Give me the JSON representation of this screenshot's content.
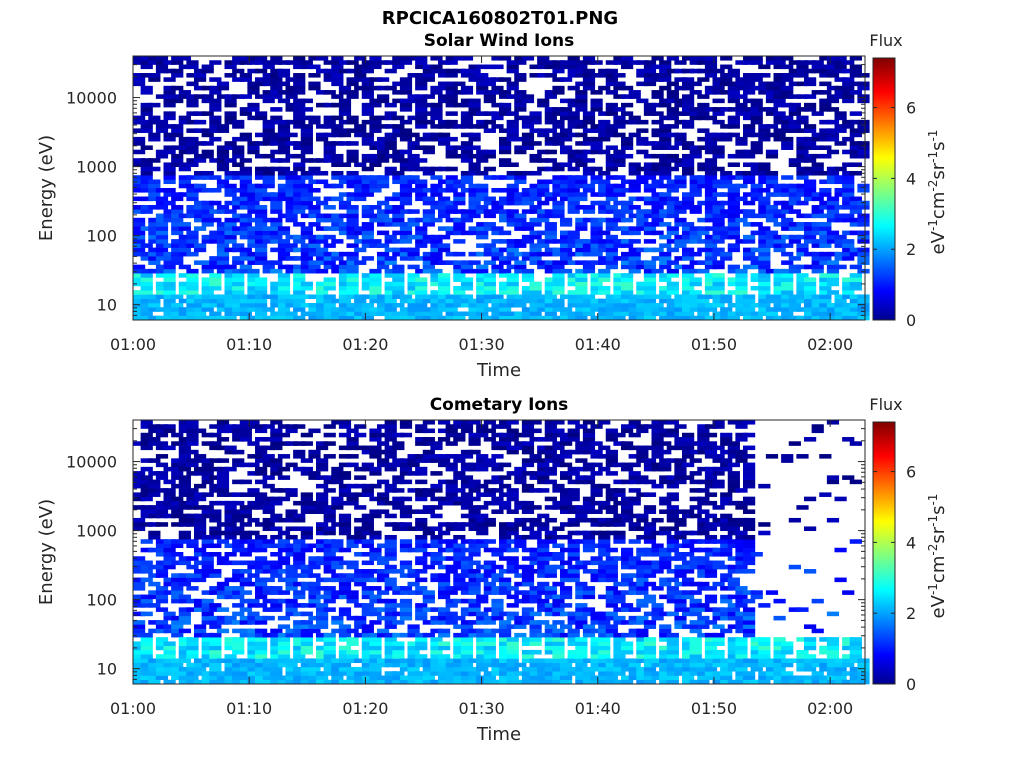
{
  "figure_title": "RPCICA160802T01.PNG",
  "chart_data": [
    {
      "type": "heatmap",
      "title": "Solar Wind Ions",
      "xlabel": "Time",
      "ylabel": "Energy (eV)",
      "x_ticks": [
        "01:00",
        "01:10",
        "01:20",
        "01:30",
        "01:40",
        "01:50",
        "02:00"
      ],
      "x_range": [
        "01:00",
        "02:03"
      ],
      "y_scale": "log",
      "y_ticks": [
        10,
        100,
        1000,
        10000
      ],
      "y_range": [
        6,
        40000
      ],
      "colorbar": {
        "title": "Flux",
        "label": "eV-1cm-2sr-1s-1",
        "range": [
          0,
          7.4
        ],
        "ticks": [
          0,
          2,
          4,
          6
        ],
        "colormap": "jet"
      },
      "data_gap_after": null,
      "pattern": {
        "low_energy_bands_flux": [
          2,
          3.2
        ],
        "mid_energy_flux": [
          1,
          2
        ],
        "high_energy_flux": [
          0,
          0.6
        ]
      }
    },
    {
      "type": "heatmap",
      "title": "Cometary Ions",
      "xlabel": "Time",
      "ylabel": "Energy (eV)",
      "x_ticks": [
        "01:00",
        "01:10",
        "01:20",
        "01:30",
        "01:40",
        "01:50",
        "02:00"
      ],
      "x_range": [
        "01:00",
        "02:03"
      ],
      "y_scale": "log",
      "y_ticks": [
        10,
        100,
        1000,
        10000
      ],
      "y_range": [
        6,
        40000
      ],
      "colorbar": {
        "title": "Flux",
        "label": "eV-1cm-2sr-1s-1",
        "range": [
          0,
          7.4
        ],
        "ticks": [
          0,
          2,
          4,
          6
        ],
        "colormap": "jet"
      },
      "data_gap_after": "01:53",
      "pattern": {
        "low_energy_bands_flux": [
          2,
          3.2
        ],
        "mid_energy_flux": [
          1,
          2
        ],
        "high_energy_flux": [
          0,
          0.6
        ]
      }
    }
  ]
}
